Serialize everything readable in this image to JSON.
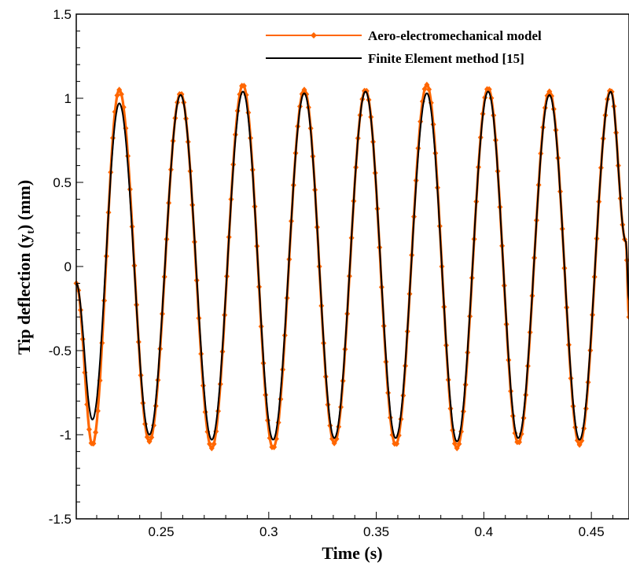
{
  "chart_data": {
    "type": "line",
    "xlabel": "Time (s)",
    "ylabel_main": "Tip deflection (y",
    "ylabel_sub": "t",
    "ylabel_tail": ") (mm)",
    "xlim": [
      0.2105,
      0.4675
    ],
    "ylim": [
      -1.5,
      1.5
    ],
    "xticks": [
      0.25,
      0.3,
      0.35,
      0.4,
      0.45
    ],
    "xtick_labels": [
      "0.25",
      "0.3",
      "0.35",
      "0.4",
      "0.45"
    ],
    "yticks": [
      -1.5,
      -1,
      -0.5,
      0,
      0.5,
      1,
      1.5
    ],
    "ytick_labels": [
      "-1.5",
      "-1",
      "-0.5",
      "0",
      "0.5",
      "1",
      "1.5"
    ],
    "grid": false,
    "legend_position": "top-right",
    "series": [
      {
        "name": "Aero-electromechanical model",
        "color": "#ff6600",
        "marker": "diamond",
        "x": [
          0.2105,
          0.218,
          0.2305,
          0.2445,
          0.259,
          0.2735,
          0.288,
          0.302,
          0.3165,
          0.3305,
          0.345,
          0.359,
          0.3735,
          0.3875,
          0.402,
          0.416,
          0.4305,
          0.4445,
          0.459,
          0.466,
          0.4675
        ],
        "y": [
          -0.1,
          -1.06,
          1.05,
          -1.04,
          1.03,
          -1.08,
          1.08,
          -1.08,
          1.05,
          -1.05,
          1.05,
          -1.06,
          1.08,
          -1.08,
          1.06,
          -1.05,
          1.04,
          -1.06,
          1.05,
          0.15,
          -0.3
        ]
      },
      {
        "name": "Finite Element method [15]",
        "color": "#000000",
        "marker": "none",
        "x": [
          0.2105,
          0.218,
          0.2305,
          0.2445,
          0.259,
          0.2735,
          0.288,
          0.302,
          0.3165,
          0.3305,
          0.345,
          0.359,
          0.3735,
          0.3875,
          0.402,
          0.416,
          0.4305,
          0.4445,
          0.459,
          0.466,
          0.4675
        ],
        "y": [
          -0.1,
          -0.91,
          0.97,
          -1.0,
          1.02,
          -1.03,
          1.04,
          -1.03,
          1.03,
          -1.02,
          1.04,
          -1.02,
          1.03,
          -1.04,
          1.04,
          -1.02,
          1.02,
          -1.03,
          1.04,
          0.15,
          -0.2
        ]
      }
    ]
  }
}
